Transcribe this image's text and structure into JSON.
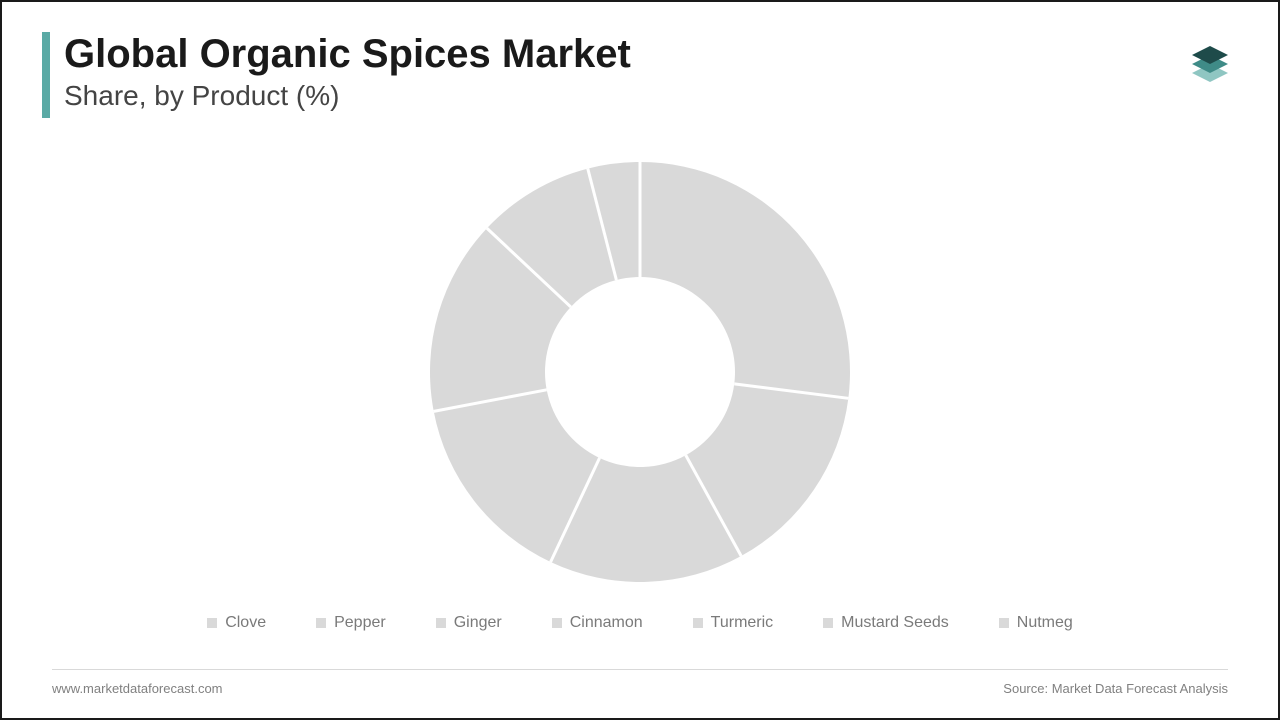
{
  "header": {
    "title": "Global Organic Spices Market",
    "subtitle": "Share, by Product (%)",
    "accent_color": "#5aaaa5"
  },
  "logo": {
    "top_color": "#1e4b4a",
    "mid_color": "#3f8b87",
    "bot_color": "#8fc6c2"
  },
  "chart": {
    "type": "donut",
    "outer_radius": 210,
    "inner_radius": 95,
    "slice_color": "#d9d9d9",
    "gap_color": "#ffffff",
    "gap_width": 3,
    "background_color": "#ffffff",
    "start_angle_deg": -90,
    "categories": [
      "Clove",
      "Pepper",
      "Ginger",
      "Cinnamon",
      "Turmeric",
      "Mustard Seeds",
      "Nutmeg"
    ],
    "values": [
      27,
      15,
      15,
      15,
      15,
      9,
      4
    ]
  },
  "legend": {
    "marker_color": "#d9d9d9",
    "marker_prefix": "■",
    "text_color": "#7a7a7a",
    "fontsize": 16
  },
  "footer": {
    "left": "www.marketdataforecast.com",
    "right": "Source: Market Data Forecast Analysis",
    "text_color": "#808080",
    "rule_color": "#d9d9d9"
  }
}
